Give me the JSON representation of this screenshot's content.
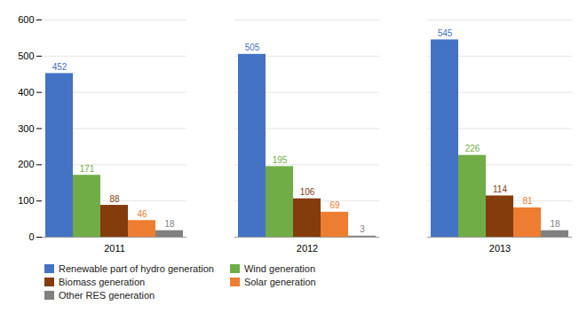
{
  "chart_data": {
    "type": "bar",
    "categories": [
      "2011",
      "2012",
      "2013"
    ],
    "series": [
      {
        "name": "Renewable part of hydro generation",
        "color": "#4472C4",
        "values": [
          452,
          505,
          545
        ]
      },
      {
        "name": "Wind generation",
        "color": "#70AD47",
        "values": [
          171,
          195,
          226
        ]
      },
      {
        "name": "Biomass generation",
        "color": "#843C0C",
        "values": [
          88,
          106,
          114
        ]
      },
      {
        "name": "Solar generation",
        "color": "#ED7D31",
        "values": [
          46,
          69,
          81
        ]
      },
      {
        "name": "Other RES generation",
        "color": "#808080",
        "values": [
          18,
          3,
          18
        ]
      }
    ],
    "ylim": [
      0,
      600
    ],
    "yticks": [
      0,
      100,
      200,
      300,
      400,
      500,
      600
    ],
    "grid": true,
    "data_labels": true,
    "legend": "bottom"
  }
}
